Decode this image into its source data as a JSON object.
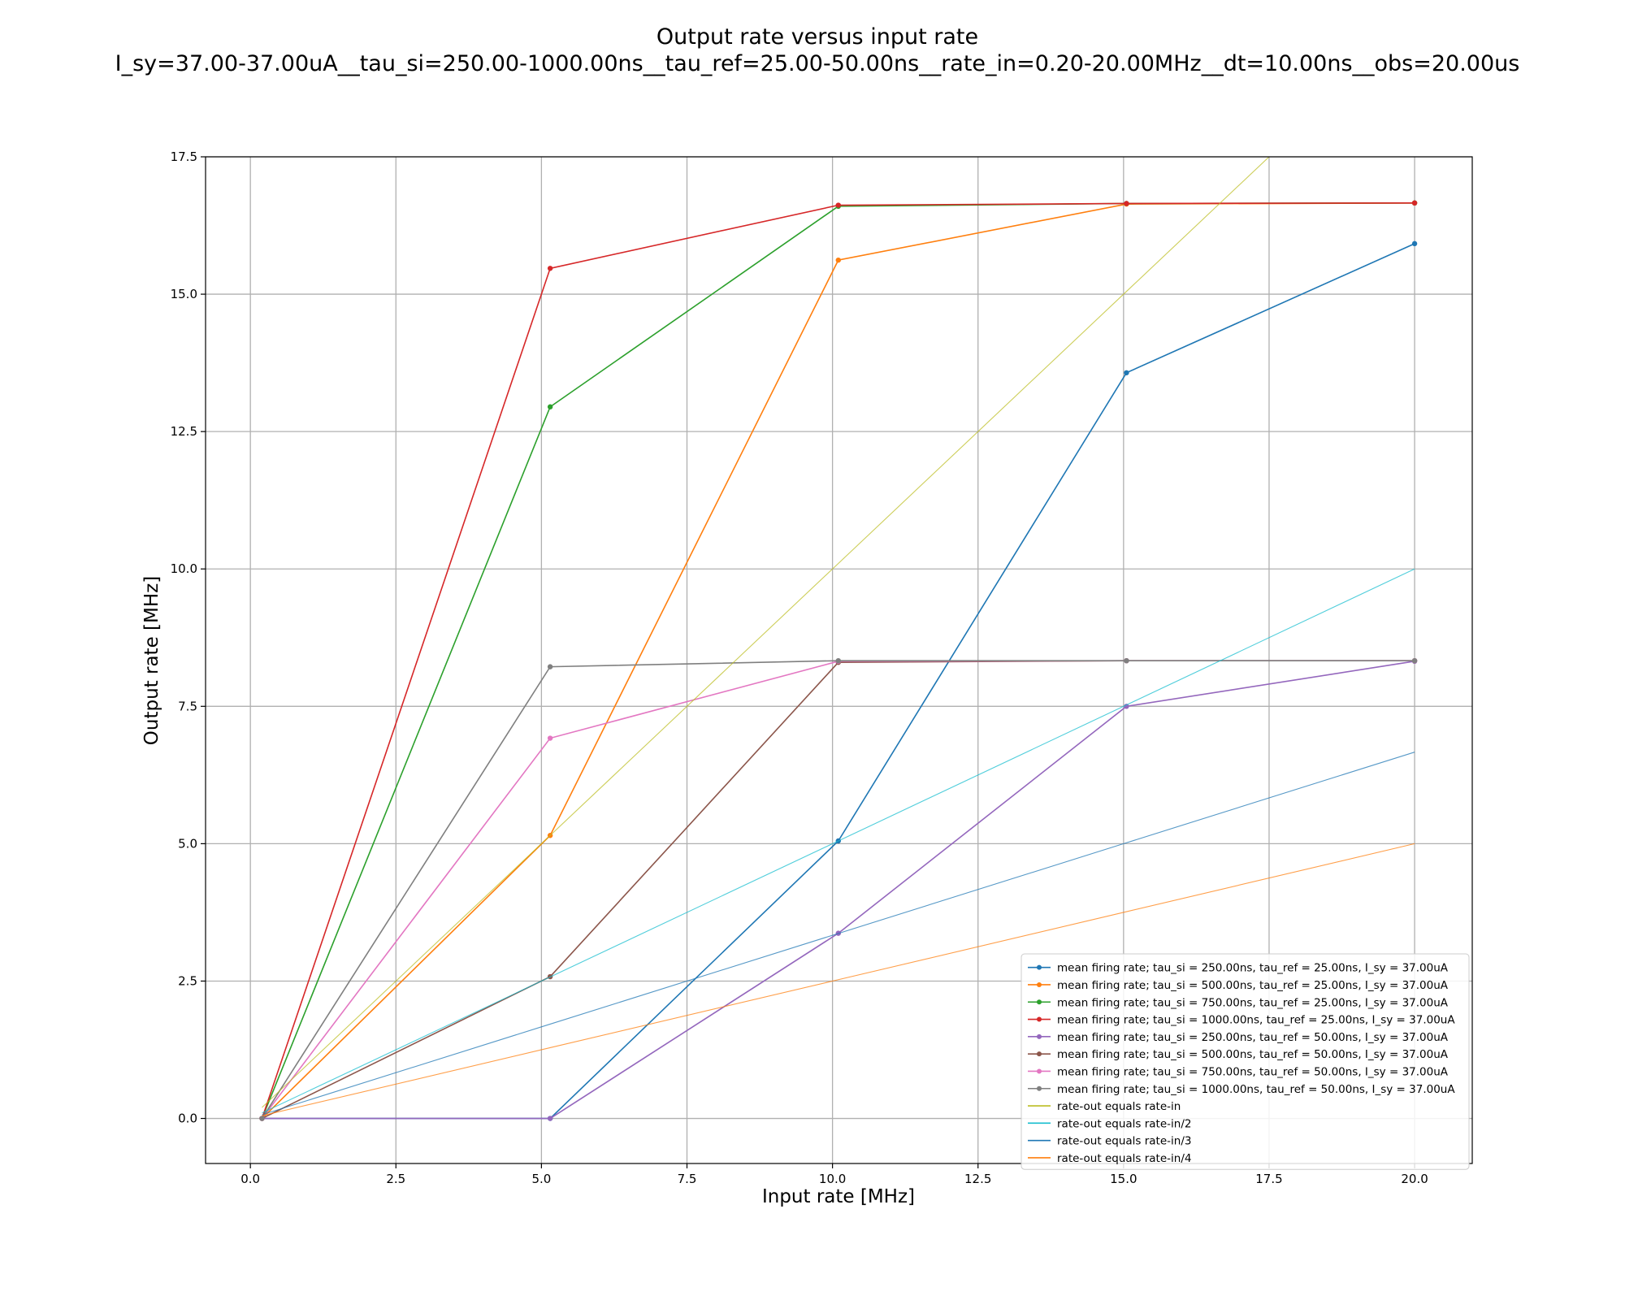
{
  "chart_data": {
    "type": "line",
    "title": "Output rate versus input rate",
    "subtitle": "I_sy=37.00-37.00uA__tau_si=250.00-1000.00ns__tau_ref=25.00-50.00ns__rate_in=0.20-20.00MHz__dt=10.00ns__obs=20.00us",
    "xlabel": "Input rate [MHz]",
    "ylabel": "Output rate [MHz]",
    "xlim": [
      -0.77,
      20.99
    ],
    "ylim": [
      -0.82,
      17.5
    ],
    "xticks": [
      "0.0",
      "2.5",
      "5.0",
      "7.5",
      "10.0",
      "12.5",
      "15.0",
      "17.5",
      "20.0"
    ],
    "yticks": [
      "0.0",
      "2.5",
      "5.0",
      "7.5",
      "10.0",
      "12.5",
      "15.0",
      "17.5"
    ],
    "grid": true,
    "legend_position": "lower-right",
    "series": [
      {
        "name": "mean firing rate; tau_si = 250.00ns, tau_ref = 25.00ns, I_sy = 37.00uA",
        "color": "#1f77b4",
        "markers": true,
        "x": [
          0.2,
          5.15,
          10.1,
          15.05,
          20.0
        ],
        "y": [
          0.0,
          0.0,
          5.05,
          13.57,
          15.92
        ]
      },
      {
        "name": "mean firing rate; tau_si = 500.00ns, tau_ref = 25.00ns, I_sy = 37.00uA",
        "color": "#ff7f0e",
        "markers": true,
        "x": [
          0.2,
          5.15,
          10.1,
          15.05,
          20.0
        ],
        "y": [
          0.0,
          5.15,
          15.62,
          16.64,
          16.66
        ]
      },
      {
        "name": "mean firing rate; tau_si = 750.00ns, tau_ref = 25.00ns, I_sy = 37.00uA",
        "color": "#2ca02c",
        "markers": true,
        "x": [
          0.2,
          5.15,
          10.1,
          15.05,
          20.0
        ],
        "y": [
          0.0,
          12.95,
          16.6,
          16.65,
          16.66
        ]
      },
      {
        "name": "mean firing rate; tau_si = 1000.00ns, tau_ref = 25.00ns, I_sy = 37.00uA",
        "color": "#d62728",
        "markers": true,
        "x": [
          0.2,
          5.15,
          10.1,
          15.05,
          20.0
        ],
        "y": [
          0.0,
          15.47,
          16.62,
          16.65,
          16.66
        ]
      },
      {
        "name": "mean firing rate; tau_si = 250.00ns, tau_ref = 50.00ns, I_sy = 37.00uA",
        "color": "#9467bd",
        "markers": true,
        "x": [
          0.2,
          5.15,
          10.1,
          15.05,
          20.0
        ],
        "y": [
          0.0,
          0.0,
          3.37,
          7.5,
          8.32
        ]
      },
      {
        "name": "mean firing rate; tau_si = 500.00ns, tau_ref = 50.00ns, I_sy = 37.00uA",
        "color": "#8c564b",
        "markers": true,
        "x": [
          0.2,
          5.15,
          10.1,
          15.05,
          20.0
        ],
        "y": [
          0.0,
          2.58,
          8.3,
          8.33,
          8.33
        ]
      },
      {
        "name": "mean firing rate; tau_si = 750.00ns, tau_ref = 50.00ns, I_sy = 37.00uA",
        "color": "#e377c2",
        "markers": true,
        "x": [
          0.2,
          5.15,
          10.1,
          15.05,
          20.0
        ],
        "y": [
          0.0,
          6.92,
          8.32,
          8.33,
          8.33
        ]
      },
      {
        "name": "mean firing rate; tau_si = 1000.00ns, tau_ref = 50.00ns, I_sy = 37.00uA",
        "color": "#7f7f7f",
        "markers": true,
        "x": [
          0.2,
          5.15,
          10.1,
          15.05,
          20.0
        ],
        "y": [
          0.0,
          8.22,
          8.33,
          8.33,
          8.33
        ]
      },
      {
        "name": "rate-out equals rate-in",
        "color": "#bcbd22",
        "markers": false,
        "x": [
          0.2,
          5.15,
          10.1,
          15.05,
          20.0
        ],
        "y": [
          0.2,
          5.15,
          10.1,
          15.05,
          20.0
        ]
      },
      {
        "name": "rate-out equals rate-in/2",
        "color": "#17becf",
        "markers": false,
        "x": [
          0.2,
          5.15,
          10.1,
          15.05,
          20.0
        ],
        "y": [
          0.1,
          2.575,
          5.05,
          7.525,
          10.0
        ]
      },
      {
        "name": "rate-out equals rate-in/3",
        "color": "#1f77b4",
        "markers": false,
        "x": [
          0.2,
          5.15,
          10.1,
          15.05,
          20.0
        ],
        "y": [
          0.0667,
          1.7167,
          3.3667,
          5.0167,
          6.6667
        ]
      },
      {
        "name": "rate-out equals rate-in/4",
        "color": "#ff7f0e",
        "markers": false,
        "x": [
          0.2,
          5.15,
          10.1,
          15.05,
          20.0
        ],
        "y": [
          0.05,
          1.2875,
          2.525,
          3.7625,
          5.0
        ]
      }
    ]
  }
}
